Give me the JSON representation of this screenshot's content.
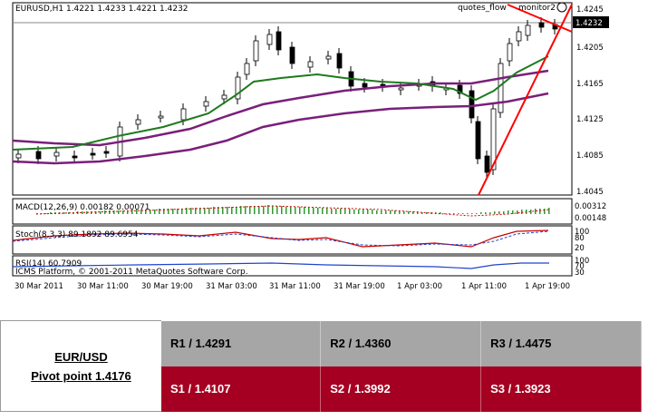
{
  "chart": {
    "header": "EURUSD,H1  1.4221 1.4233 1.4221 1.4232",
    "top_right_labels": [
      "quotes_flow",
      "monitor2"
    ],
    "current_price": "1.4232",
    "price_axis": [
      "1.4245",
      "1.4205",
      "1.4165",
      "1.4125",
      "1.4085",
      "1.4045"
    ],
    "time_axis": [
      "30 Mar 2011",
      "30 Mar 11:00",
      "30 Mar 19:00",
      "31 Mar 03:00",
      "31 Mar 11:00",
      "31 Mar 19:00",
      "1 Apr 03:00",
      "1 Apr 11:00",
      "1 Apr 19:00"
    ],
    "macd": {
      "label": "MACD(12,26,9) 0.00182 0.00071",
      "axis": [
        "0.00312",
        "0.00148"
      ]
    },
    "stoch": {
      "label": "Stoch(8,3,3) 89.1892 89.6954",
      "axis": [
        "100",
        "80",
        "20"
      ]
    },
    "rsi": {
      "label": "RSI(14) 60.7909",
      "axis": [
        "100",
        "70",
        "30"
      ]
    },
    "copyright": "ICMS Platform, © 2001-2011 MetaQuotes Software Corp.",
    "colors": {
      "bull": "#ffffff",
      "bear": "#000000",
      "ma_fast": "#1e7a1e",
      "ma_slow": "#7a1f7a",
      "trendline": "#ff0000",
      "macd_hist": "#2e9a2e",
      "signal": "#cc0000",
      "rsi": "#2244cc"
    }
  },
  "pivot": {
    "pair": "EUR/USD",
    "pivot_label": "Pivot point 1.4176",
    "resistance": [
      "R1 / 1.4291",
      "R2 / 1.4360",
      "R3 / 1.4475"
    ],
    "support": [
      "S1 / 1.4107",
      "S2 / 1.3992",
      "S3 / 1.3923"
    ]
  }
}
